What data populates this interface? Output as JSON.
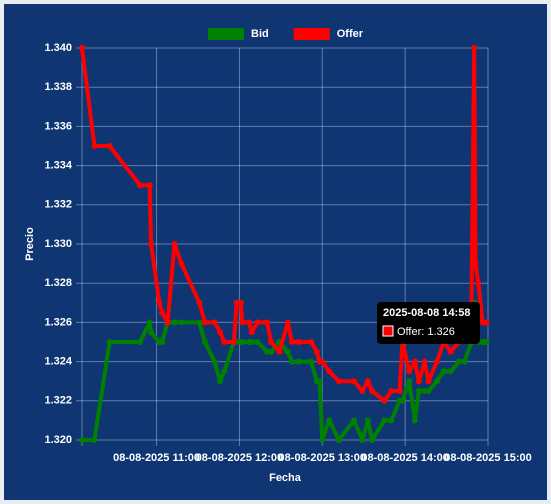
{
  "chart_data": {
    "type": "line",
    "x_label": "Fecha",
    "y_label": "Precio",
    "x": [
      "2025-08-08 10:06",
      "2025-08-08 10:15",
      "2025-08-08 10:26",
      "2025-08-08 10:48",
      "2025-08-08 10:55",
      "2025-08-08 10:56",
      "2025-08-08 11:02",
      "2025-08-08 11:04",
      "2025-08-08 11:08",
      "2025-08-08 11:13",
      "2025-08-08 11:18",
      "2025-08-08 11:31",
      "2025-08-08 11:35",
      "2025-08-08 11:42",
      "2025-08-08 11:46",
      "2025-08-08 11:49",
      "2025-08-08 11:56",
      "2025-08-08 11:58",
      "2025-08-08 12:01",
      "2025-08-08 12:02",
      "2025-08-08 12:07",
      "2025-08-08 12:09",
      "2025-08-08 12:13",
      "2025-08-08 12:20",
      "2025-08-08 12:23",
      "2025-08-08 12:29",
      "2025-08-08 12:35",
      "2025-08-08 12:38",
      "2025-08-08 12:43",
      "2025-08-08 12:52",
      "2025-08-08 12:56",
      "2025-08-08 12:58",
      "2025-08-08 13:00",
      "2025-08-08 13:05",
      "2025-08-08 13:12",
      "2025-08-08 13:23",
      "2025-08-08 13:29",
      "2025-08-08 13:33",
      "2025-08-08 13:36",
      "2025-08-08 13:45",
      "2025-08-08 13:50",
      "2025-08-08 13:56",
      "2025-08-08 13:58",
      "2025-08-08 14:03",
      "2025-08-08 14:07",
      "2025-08-08 14:10",
      "2025-08-08 14:14",
      "2025-08-08 14:17",
      "2025-08-08 14:23",
      "2025-08-08 14:28",
      "2025-08-08 14:33",
      "2025-08-08 14:39",
      "2025-08-08 14:43",
      "2025-08-08 14:48",
      "2025-08-08 14:50",
      "2025-08-08 14:51",
      "2025-08-08 14:53",
      "2025-08-08 14:56",
      "2025-08-08 14:58",
      "2025-08-08 14:59"
    ],
    "series": [
      {
        "name": "Bid",
        "color": "#008000",
        "values": [
          1.32,
          1.32,
          1.325,
          1.325,
          1.326,
          1.3255,
          1.325,
          1.325,
          1.326,
          1.326,
          1.326,
          1.326,
          1.325,
          1.324,
          1.323,
          1.3235,
          1.325,
          1.325,
          1.325,
          1.325,
          1.325,
          1.325,
          1.325,
          1.3245,
          1.3245,
          1.325,
          1.3245,
          1.324,
          1.324,
          1.324,
          1.323,
          1.323,
          1.32,
          1.321,
          1.32,
          1.321,
          1.32,
          1.321,
          1.32,
          1.321,
          1.321,
          1.322,
          1.322,
          1.323,
          1.321,
          1.3225,
          1.3225,
          1.3225,
          1.323,
          1.3235,
          1.3235,
          1.324,
          1.324,
          1.325,
          1.326,
          1.327,
          1.325,
          1.325,
          1.325,
          1.325
        ]
      },
      {
        "name": "Offer",
        "color": "#ff0000",
        "values": [
          1.34,
          1.335,
          1.335,
          1.333,
          1.333,
          1.33,
          1.327,
          1.3265,
          1.326,
          1.33,
          1.329,
          1.327,
          1.326,
          1.326,
          1.3255,
          1.325,
          1.325,
          1.327,
          1.327,
          1.326,
          1.326,
          1.3255,
          1.326,
          1.326,
          1.325,
          1.3245,
          1.326,
          1.325,
          1.325,
          1.325,
          1.3245,
          1.324,
          1.324,
          1.3235,
          1.323,
          1.323,
          1.3225,
          1.323,
          1.3225,
          1.322,
          1.3225,
          1.3225,
          1.325,
          1.3235,
          1.324,
          1.323,
          1.324,
          1.323,
          1.324,
          1.325,
          1.3245,
          1.325,
          1.326,
          1.3265,
          1.34,
          1.329,
          1.328,
          1.326,
          1.326,
          1.326
        ]
      }
    ],
    "xlim": [
      "2025-08-08 10:06",
      "2025-08-08 15:00"
    ],
    "xticks": [
      {
        "value": "2025-08-08 11:00",
        "label": "08-08-2025 11:00"
      },
      {
        "value": "2025-08-08 12:00",
        "label": "08-08-2025 12:00"
      },
      {
        "value": "2025-08-08 13:00",
        "label": "08-08-2025 13:00"
      },
      {
        "value": "2025-08-08 14:00",
        "label": "08-08-2025 14:00"
      },
      {
        "value": "2025-08-08 15:00",
        "label": "08-08-2025 15:00"
      }
    ],
    "ylim": [
      1.32,
      1.34
    ],
    "yticks": [
      {
        "value": 1.32,
        "label": "1.320"
      },
      1.322,
      1.324,
      1.326,
      1.328,
      {
        "value": 1.33,
        "label": "1.330"
      },
      1.332,
      1.334,
      1.336,
      1.338,
      {
        "value": 1.34,
        "label": "1.340"
      }
    ],
    "grid": true,
    "legend": "top",
    "tooltip": {
      "title": "2025-08-08 14:58",
      "label": "Offer: 1.326",
      "color": "#ff0000"
    }
  }
}
